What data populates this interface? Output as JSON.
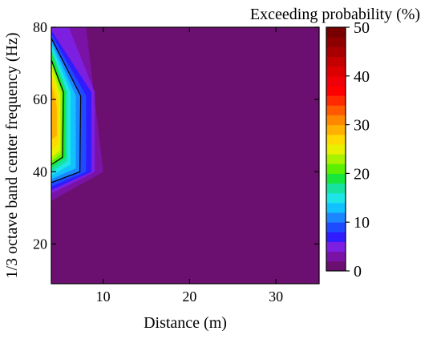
{
  "chart_data": {
    "type": "contour",
    "xlabel": "Distance (m)",
    "ylabel": "1/3 octave band center frequency (Hz)",
    "colorbar_label": "Exceeding probability (%)",
    "xlim": [
      4,
      35
    ],
    "ylim": [
      9,
      80
    ],
    "xticks": [
      10,
      20,
      30
    ],
    "yticks": [
      20,
      40,
      60,
      80
    ],
    "colorbar_range": [
      0,
      50
    ],
    "colorbar_ticks": [
      0,
      10,
      20,
      30,
      40,
      50
    ],
    "background_color": "#6b0f70",
    "colormap": [
      {
        "from": 0,
        "to": 2,
        "color": "#6b0f70"
      },
      {
        "from": 2,
        "to": 4,
        "color": "#7a12a6"
      },
      {
        "from": 4,
        "to": 6,
        "color": "#7d1fe0"
      },
      {
        "from": 6,
        "to": 8,
        "color": "#2f1cff"
      },
      {
        "from": 8,
        "to": 10,
        "color": "#1e4bff"
      },
      {
        "from": 10,
        "to": 12,
        "color": "#1b86ff"
      },
      {
        "from": 12,
        "to": 14,
        "color": "#12c2ff"
      },
      {
        "from": 14,
        "to": 16,
        "color": "#1ee5e6"
      },
      {
        "from": 16,
        "to": 18,
        "color": "#17e2a0"
      },
      {
        "from": 18,
        "to": 20,
        "color": "#19e63c"
      },
      {
        "from": 20,
        "to": 22,
        "color": "#5cf000"
      },
      {
        "from": 22,
        "to": 24,
        "color": "#a8f200"
      },
      {
        "from": 24,
        "to": 26,
        "color": "#e8f000"
      },
      {
        "from": 26,
        "to": 28,
        "color": "#ffd900"
      },
      {
        "from": 28,
        "to": 30,
        "color": "#ffb000"
      },
      {
        "from": 30,
        "to": 32,
        "color": "#ff8800"
      },
      {
        "from": 32,
        "to": 34,
        "color": "#ff5a00"
      },
      {
        "from": 34,
        "to": 36,
        "color": "#ff2a00"
      },
      {
        "from": 36,
        "to": 38,
        "color": "#ff0000"
      },
      {
        "from": 38,
        "to": 40,
        "color": "#f00008"
      },
      {
        "from": 40,
        "to": 42,
        "color": "#dc0000"
      },
      {
        "from": 42,
        "to": 44,
        "color": "#c40000"
      },
      {
        "from": 44,
        "to": 46,
        "color": "#a80000"
      },
      {
        "from": 46,
        "to": 48,
        "color": "#8e0000"
      },
      {
        "from": 48,
        "to": 50,
        "color": "#780000"
      }
    ],
    "contour_bands": [
      {
        "level": 2,
        "color": "#7a12a6",
        "points": [
          [
            4,
            80
          ],
          [
            8,
            80
          ],
          [
            10,
            40
          ],
          [
            4,
            32
          ]
        ]
      },
      {
        "level": 4,
        "color": "#7d1fe0",
        "points": [
          [
            4,
            80
          ],
          [
            6,
            80
          ],
          [
            9,
            62
          ],
          [
            9,
            40
          ],
          [
            4,
            34
          ]
        ]
      },
      {
        "level": 6,
        "color": "#2f1cff",
        "points": [
          [
            4,
            79
          ],
          [
            8.6,
            62
          ],
          [
            8.6,
            40
          ],
          [
            4,
            35
          ]
        ]
      },
      {
        "level": 8,
        "color": "#1e4bff",
        "points": [
          [
            4,
            78
          ],
          [
            8,
            61
          ],
          [
            8,
            40
          ],
          [
            4,
            36
          ]
        ]
      },
      {
        "level": 10,
        "color": "#1b86ff",
        "points": [
          [
            4,
            77
          ],
          [
            7.4,
            61
          ],
          [
            7.3,
            40
          ],
          [
            4,
            37
          ]
        ]
      },
      {
        "level": 12,
        "color": "#12c2ff",
        "points": [
          [
            4,
            76
          ],
          [
            6.8,
            61
          ],
          [
            6.8,
            41
          ],
          [
            4,
            38
          ]
        ]
      },
      {
        "level": 14,
        "color": "#1ee5e6",
        "points": [
          [
            4,
            75
          ],
          [
            6.2,
            62
          ],
          [
            6.2,
            42
          ],
          [
            4,
            39
          ]
        ]
      },
      {
        "level": 16,
        "color": "#17e2a0",
        "points": [
          [
            4,
            74
          ],
          [
            5.8,
            62
          ],
          [
            5.8,
            43
          ],
          [
            4,
            40
          ]
        ]
      },
      {
        "level": 18,
        "color": "#19e63c",
        "points": [
          [
            4,
            73
          ],
          [
            5.6,
            62
          ],
          [
            5.6,
            44
          ],
          [
            4,
            41
          ]
        ]
      },
      {
        "level": 20,
        "color": "#5cf000",
        "points": [
          [
            4,
            71
          ],
          [
            5.4,
            62
          ],
          [
            5.3,
            44
          ],
          [
            4,
            42
          ]
        ]
      },
      {
        "level": 22,
        "color": "#a8f200",
        "points": [
          [
            4,
            70
          ],
          [
            5.2,
            62
          ],
          [
            5.1,
            45
          ],
          [
            4,
            43
          ]
        ]
      },
      {
        "level": 24,
        "color": "#e8f000",
        "points": [
          [
            4,
            69
          ],
          [
            5,
            61
          ],
          [
            5,
            46
          ],
          [
            4,
            44
          ]
        ]
      },
      {
        "level": 26,
        "color": "#ffd900",
        "points": [
          [
            4,
            67
          ],
          [
            4.8,
            60
          ],
          [
            4.8,
            48
          ],
          [
            4,
            46
          ]
        ]
      },
      {
        "level": 28,
        "color": "#ffb000",
        "points": [
          [
            4,
            64
          ],
          [
            4.6,
            58
          ],
          [
            4.6,
            50
          ],
          [
            4,
            49
          ]
        ]
      }
    ],
    "contour_lines": [
      {
        "level": 10,
        "points": [
          [
            4,
            77
          ],
          [
            7.4,
            61
          ],
          [
            7.3,
            40
          ],
          [
            4,
            37
          ]
        ]
      },
      {
        "level": 20,
        "points": [
          [
            4,
            71
          ],
          [
            5.4,
            62
          ],
          [
            5.3,
            44
          ],
          [
            4,
            42
          ]
        ]
      }
    ]
  }
}
